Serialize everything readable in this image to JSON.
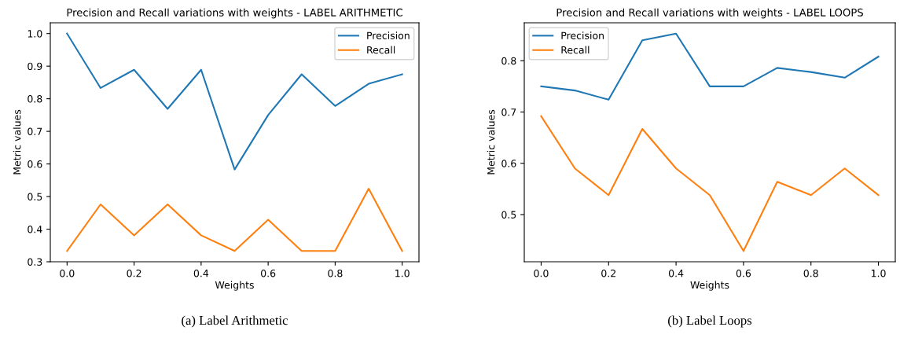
{
  "chart_data": [
    {
      "type": "line",
      "title": "Precision and Recall variations with weights - LABEL ARITHMETIC",
      "xlabel": "Weights",
      "ylabel": "Metric values",
      "x": [
        0.0,
        0.1,
        0.2,
        0.3,
        0.4,
        0.5,
        0.6,
        0.7,
        0.8,
        0.9,
        1.0
      ],
      "series": [
        {
          "name": "Precision",
          "color": "#1f77b4",
          "values": [
            1.0,
            0.833,
            0.889,
            0.769,
            0.889,
            0.583,
            0.75,
            0.875,
            0.778,
            0.846,
            0.875
          ]
        },
        {
          "name": "Recall",
          "color": "#ff7f0e",
          "values": [
            0.333,
            0.476,
            0.381,
            0.476,
            0.381,
            0.333,
            0.429,
            0.333,
            0.333,
            0.524,
            0.333
          ]
        }
      ],
      "xlim": [
        -0.05,
        1.05
      ],
      "xticks": [
        {
          "value": 0.0,
          "label": "0.0"
        },
        {
          "value": 0.2,
          "label": "0.2"
        },
        {
          "value": 0.4,
          "label": "0.4"
        },
        {
          "value": 0.6,
          "label": "0.6"
        },
        {
          "value": 0.8,
          "label": "0.8"
        },
        {
          "value": 1.0,
          "label": "1.0"
        }
      ],
      "ylim": [
        0.3,
        1.033
      ],
      "yticks": [
        {
          "value": 0.3,
          "label": "0.3"
        },
        0.4,
        0.5,
        0.6,
        0.7,
        0.8,
        0.9,
        {
          "value": 1.0,
          "label": "1.0"
        }
      ],
      "legend": "top right",
      "grid": false,
      "annotations": [
        "(a) Label Arithmetic"
      ]
    },
    {
      "type": "line",
      "title": "Precision and Recall variations with weights - LABEL LOOPS",
      "xlabel": "Weights",
      "ylabel": "Metric values",
      "x": [
        0.0,
        0.1,
        0.2,
        0.3,
        0.4,
        0.5,
        0.6,
        0.7,
        0.8,
        0.9,
        1.0
      ],
      "series": [
        {
          "name": "Precision",
          "color": "#1f77b4",
          "values": [
            0.75,
            0.742,
            0.724,
            0.84,
            0.853,
            0.75,
            0.75,
            0.786,
            0.778,
            0.767,
            0.808
          ]
        },
        {
          "name": "Recall",
          "color": "#ff7f0e",
          "values": [
            0.692,
            0.59,
            0.538,
            0.667,
            0.59,
            0.538,
            0.429,
            0.564,
            0.538,
            0.59,
            0.538
          ]
        }
      ],
      "xlim": [
        -0.05,
        1.05
      ],
      "xticks": [
        {
          "value": 0.0,
          "label": "0.0"
        },
        {
          "value": 0.2,
          "label": "0.2"
        },
        {
          "value": 0.4,
          "label": "0.4"
        },
        {
          "value": 0.6,
          "label": "0.6"
        },
        {
          "value": 0.8,
          "label": "0.8"
        },
        {
          "value": 1.0,
          "label": "1.0"
        }
      ],
      "ylim": [
        0.408,
        0.874
      ],
      "yticks": [
        0.5,
        0.6,
        0.7,
        0.8
      ],
      "legend": "top left",
      "grid": false,
      "annotations": [
        "(b) Label Loops"
      ]
    }
  ]
}
